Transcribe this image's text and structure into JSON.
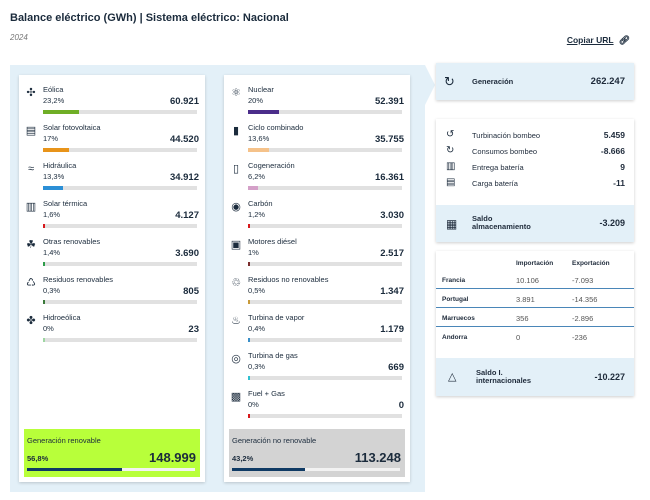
{
  "header": {
    "title": "Balance eléctrico (GWh) | Sistema eléctrico: Nacional",
    "year": "2024",
    "copy_url": "Copiar URL",
    "copy_icon": "link-icon"
  },
  "renewable": {
    "items": [
      {
        "name": "Eólica",
        "pct": "23,2%",
        "value": "60.921",
        "fraction": 0.232,
        "color": "#6fae26",
        "icon": "wind-icon"
      },
      {
        "name": "Solar fotovoltaica",
        "pct": "17%",
        "value": "44.520",
        "fraction": 0.17,
        "color": "#e8941a",
        "icon": "solar-pv-icon"
      },
      {
        "name": "Hidráulica",
        "pct": "13,3%",
        "value": "34.912",
        "fraction": 0.133,
        "color": "#2b8fd6",
        "icon": "hydro-icon"
      },
      {
        "name": "Solar térmica",
        "pct": "1,6%",
        "value": "4.127",
        "fraction": 0.016,
        "color": "#d7191c",
        "icon": "solar-thermal-icon"
      },
      {
        "name": "Otras renovables",
        "pct": "1,4%",
        "value": "3.690",
        "fraction": 0.014,
        "color": "#2e9d4a",
        "icon": "other-renewables-icon"
      },
      {
        "name": "Residuos renovables",
        "pct": "0,3%",
        "value": "805",
        "fraction": 0.003,
        "color": "#3a7a3a",
        "icon": "renewable-waste-icon"
      },
      {
        "name": "Hidroeólica",
        "pct": "0%",
        "value": "23",
        "fraction": 0.002,
        "color": "#9fd6a3",
        "icon": "hydro-wind-icon"
      }
    ],
    "total": {
      "label": "Generación renovable",
      "pct": "56,8%",
      "value": "148.999",
      "fraction": 0.568
    }
  },
  "nonrenewable": {
    "items": [
      {
        "name": "Nuclear",
        "pct": "20%",
        "value": "52.391",
        "fraction": 0.2,
        "color": "#4b2d8a",
        "icon": "nuclear-icon"
      },
      {
        "name": "Ciclo combinado",
        "pct": "13,6%",
        "value": "35.755",
        "fraction": 0.136,
        "color": "#f5c28a",
        "icon": "combined-cycle-icon"
      },
      {
        "name": "Cogeneración",
        "pct": "6,2%",
        "value": "16.361",
        "fraction": 0.062,
        "color": "#d4a0c8",
        "icon": "cogeneration-icon"
      },
      {
        "name": "Carbón",
        "pct": "1,2%",
        "value": "3.030",
        "fraction": 0.012,
        "color": "#d7191c",
        "icon": "coal-icon"
      },
      {
        "name": "Motores diésel",
        "pct": "1%",
        "value": "2.517",
        "fraction": 0.01,
        "color": "#7a2d2d",
        "icon": "diesel-engine-icon"
      },
      {
        "name": "Residuos no renovables",
        "pct": "0,5%",
        "value": "1.347",
        "fraction": 0.005,
        "color": "#c89a3a",
        "icon": "nonrenewable-waste-icon"
      },
      {
        "name": "Turbina de vapor",
        "pct": "0,4%",
        "value": "1.179",
        "fraction": 0.004,
        "color": "#3a8fc8",
        "icon": "steam-turbine-icon"
      },
      {
        "name": "Turbina de gas",
        "pct": "0,3%",
        "value": "669",
        "fraction": 0.003,
        "color": "#2fc0d0",
        "icon": "gas-turbine-icon"
      },
      {
        "name": "Fuel + Gas",
        "pct": "0%",
        "value": "0",
        "fraction": 0.002,
        "color": "#d7191c",
        "icon": "fuel-gas-icon"
      }
    ],
    "total": {
      "label": "Generación no renovable",
      "pct": "43,2%",
      "value": "113.248",
      "fraction": 0.432
    }
  },
  "generation": {
    "label": "Generación",
    "value": "262.247",
    "icon": "generation-icon"
  },
  "storage": {
    "items": [
      {
        "label": "Turbinación bombeo",
        "value": "5.459",
        "icon": "pump-turbine-icon"
      },
      {
        "label": "Consumos bombeo",
        "value": "-8.666",
        "icon": "pump-consumption-icon"
      },
      {
        "label": "Entrega batería",
        "value": "9",
        "icon": "battery-delivery-icon"
      },
      {
        "label": "Carga batería",
        "value": "-11",
        "icon": "battery-charge-icon"
      }
    ],
    "saldo": {
      "label": "Saldo almacenamiento",
      "value": "-3.209",
      "icon": "storage-icon"
    }
  },
  "international": {
    "headers": {
      "import": "Importación",
      "export": "Exportación"
    },
    "rows": [
      {
        "country": "Francia",
        "import": "10.106",
        "export": "-7.093"
      },
      {
        "country": "Portugal",
        "import": "3.891",
        "export": "-14.356"
      },
      {
        "country": "Marruecos",
        "import": "356",
        "export": "-2.896"
      },
      {
        "country": "Andorra",
        "import": "0",
        "export": "-236"
      }
    ],
    "saldo": {
      "label": "Saldo I. internacionales",
      "value": "-10.227",
      "icon": "international-icon"
    }
  }
}
